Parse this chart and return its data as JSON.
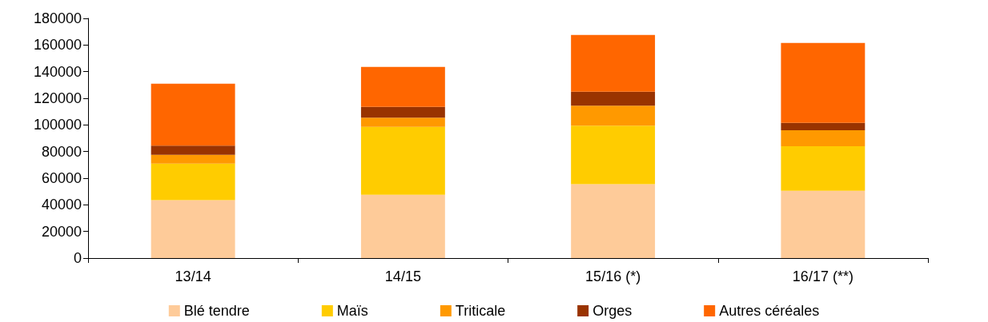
{
  "chart_data": {
    "type": "bar",
    "stacked": true,
    "categories": [
      "13/14",
      "14/15",
      "15/16 (*)",
      "16/17 (**)"
    ],
    "series": [
      {
        "name": "Blé tendre",
        "color": "#fecb99",
        "values": [
          43500,
          47500,
          55500,
          50500
        ]
      },
      {
        "name": "Maïs",
        "color": "#ffcc00",
        "values": [
          27500,
          51000,
          44000,
          33500
        ]
      },
      {
        "name": "Triticale",
        "color": "#ff9900",
        "values": [
          6500,
          7000,
          15000,
          12000
        ]
      },
      {
        "name": "Orges",
        "color": "#993300",
        "values": [
          7000,
          8000,
          10500,
          5500
        ]
      },
      {
        "name": "Autres céréales",
        "color": "#ff6600",
        "values": [
          46500,
          30000,
          42500,
          60000
        ]
      }
    ],
    "ylim": [
      0,
      180000
    ],
    "yticks": [
      0,
      20000,
      40000,
      60000,
      80000,
      100000,
      120000,
      140000,
      160000,
      180000
    ],
    "grid": false,
    "legend": "bottom"
  }
}
